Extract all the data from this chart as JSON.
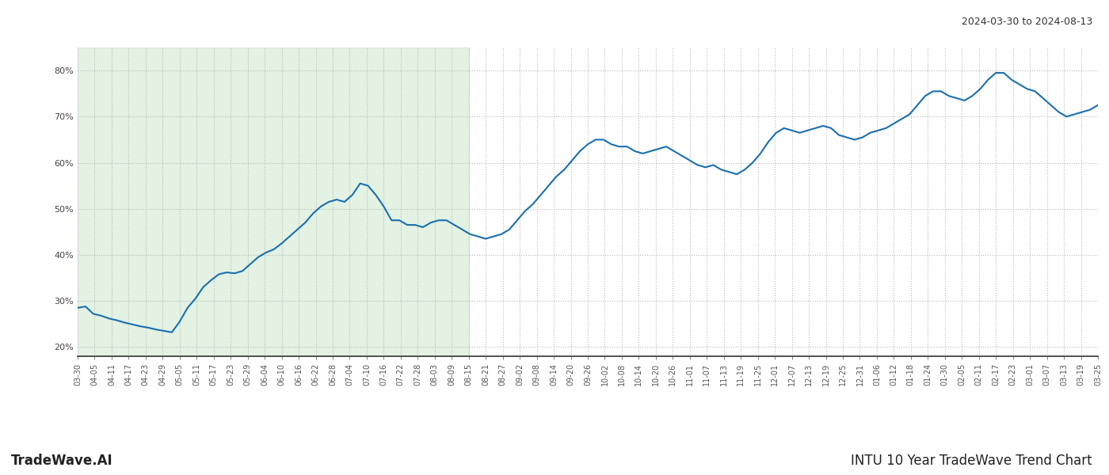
{
  "title_right": "2024-03-30 to 2024-08-13",
  "footer_left": "TradeWave.AI",
  "footer_right": "INTU 10 Year TradeWave Trend Chart",
  "line_color": "#1a6faf",
  "line_width": 1.5,
  "shaded_region_color": "#c8e6c9",
  "shaded_region_alpha": 0.5,
  "background_color": "#ffffff",
  "grid_color": "#bbbbbb",
  "ylim": [
    18,
    85
  ],
  "yticks": [
    20,
    30,
    40,
    50,
    60,
    70,
    80
  ],
  "x_labels": [
    "03-30",
    "04-05",
    "04-11",
    "04-17",
    "04-23",
    "04-29",
    "05-05",
    "05-11",
    "05-17",
    "05-23",
    "05-29",
    "06-04",
    "06-10",
    "06-16",
    "06-22",
    "06-28",
    "07-04",
    "07-10",
    "07-16",
    "07-22",
    "07-28",
    "08-03",
    "08-09",
    "08-15",
    "08-21",
    "08-27",
    "09-02",
    "09-08",
    "09-14",
    "09-20",
    "09-26",
    "10-02",
    "10-08",
    "10-14",
    "10-20",
    "10-26",
    "11-01",
    "11-07",
    "11-13",
    "11-19",
    "11-25",
    "12-01",
    "12-07",
    "12-13",
    "12-19",
    "12-25",
    "12-31",
    "01-06",
    "01-12",
    "01-18",
    "01-24",
    "01-30",
    "02-05",
    "02-11",
    "02-17",
    "02-23",
    "03-01",
    "03-07",
    "03-13",
    "03-19",
    "03-25"
  ],
  "shaded_x_start_label": "03-30",
  "shaded_x_end_label": "08-15",
  "y_values": [
    28.5,
    28.8,
    27.2,
    26.8,
    26.2,
    25.8,
    25.3,
    24.9,
    24.5,
    24.2,
    23.8,
    23.5,
    23.2,
    25.5,
    28.5,
    30.5,
    33.0,
    34.5,
    35.8,
    36.2,
    36.0,
    36.5,
    38.0,
    39.5,
    40.5,
    41.2,
    42.5,
    44.0,
    45.5,
    47.0,
    49.0,
    50.5,
    51.5,
    52.0,
    51.5,
    53.0,
    55.5,
    55.0,
    53.0,
    50.5,
    47.5,
    47.5,
    46.5,
    46.5,
    46.0,
    47.0,
    47.5,
    47.5,
    46.5,
    45.5,
    44.5,
    44.0,
    43.5,
    44.0,
    44.5,
    45.5,
    47.5,
    49.5,
    51.0,
    53.0,
    55.0,
    57.0,
    58.5,
    60.5,
    62.5,
    64.0,
    65.0,
    65.0,
    64.0,
    63.5,
    63.5,
    62.5,
    62.0,
    62.5,
    63.0,
    63.5,
    62.5,
    61.5,
    60.5,
    59.5,
    59.0,
    59.5,
    58.5,
    58.0,
    57.5,
    58.5,
    60.0,
    62.0,
    64.5,
    66.5,
    67.5,
    67.0,
    66.5,
    67.0,
    67.5,
    68.0,
    67.5,
    66.0,
    65.5,
    65.0,
    65.5,
    66.5,
    67.0,
    67.5,
    68.5,
    69.5,
    70.5,
    72.5,
    74.5,
    75.5,
    75.5,
    74.5,
    74.0,
    73.5,
    74.5,
    76.0,
    78.0,
    79.5,
    79.5,
    78.0,
    77.0,
    76.0,
    75.5,
    74.0,
    72.5,
    71.0,
    70.0,
    70.5,
    71.0,
    71.5,
    72.5
  ],
  "tick_fontsize": 8,
  "ylabel_fontsize": 10,
  "footer_fontsize": 12,
  "title_fontsize": 9
}
